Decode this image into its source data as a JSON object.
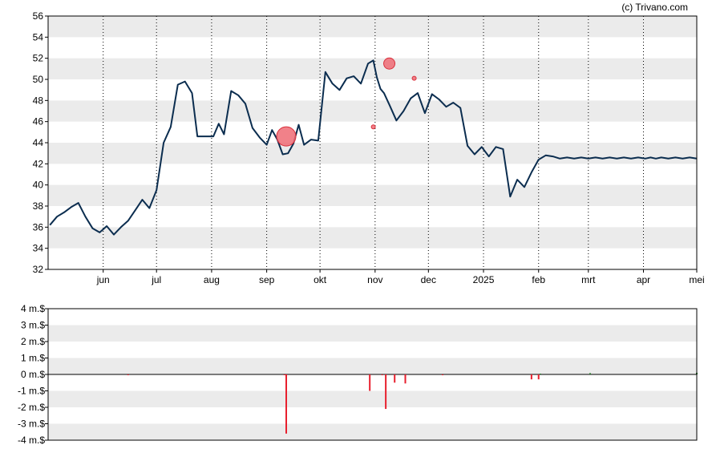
{
  "credit": "(c) Trivano.com",
  "colors": {
    "price_line": "#0b2d4f",
    "band": "#ebebeb",
    "bubble_fill": "#ef6b74",
    "bubble_stroke": "#d9303c",
    "bar_sell": "#e8202e",
    "bar_buy": "#2e7d32",
    "axis": "#000000",
    "vgrid": "#000000"
  },
  "chart_data": [
    {
      "type": "line",
      "panel": "price",
      "title": "",
      "xlabel": "",
      "ylabel": "",
      "x": [
        "2024-05-02",
        "2024-05-06",
        "2024-05-10",
        "2024-05-14",
        "2024-05-18",
        "2024-05-22",
        "2024-05-26",
        "2024-05-30",
        "2024-06-03",
        "2024-06-07",
        "2024-06-11",
        "2024-06-15",
        "2024-06-19",
        "2024-06-23",
        "2024-06-27",
        "2024-07-01",
        "2024-07-05",
        "2024-07-09",
        "2024-07-13",
        "2024-07-17",
        "2024-07-21",
        "2024-07-24",
        "2024-07-27",
        "2024-07-30",
        "2024-08-02",
        "2024-08-05",
        "2024-08-08",
        "2024-08-12",
        "2024-08-16",
        "2024-08-20",
        "2024-08-24",
        "2024-08-28",
        "2024-09-01",
        "2024-09-04",
        "2024-09-07",
        "2024-09-10",
        "2024-09-13",
        "2024-09-16",
        "2024-09-19",
        "2024-09-22",
        "2024-09-26",
        "2024-09-30",
        "2024-10-04",
        "2024-10-08",
        "2024-10-12",
        "2024-10-16",
        "2024-10-20",
        "2024-10-24",
        "2024-10-28",
        "2024-10-31",
        "2024-11-02",
        "2024-11-04",
        "2024-11-06",
        "2024-11-09",
        "2024-11-13",
        "2024-11-17",
        "2024-11-21",
        "2024-11-25",
        "2024-11-29",
        "2024-12-03",
        "2024-12-07",
        "2024-12-11",
        "2024-12-15",
        "2024-12-19",
        "2024-12-23",
        "2024-12-27",
        "2024-12-31",
        "2025-01-04",
        "2025-01-08",
        "2025-01-12",
        "2025-01-16",
        "2025-01-20",
        "2025-01-24",
        "2025-01-28",
        "2025-02-01",
        "2025-02-05",
        "2025-02-09",
        "2025-02-13",
        "2025-02-17",
        "2025-02-21",
        "2025-02-25",
        "2025-03-01",
        "2025-03-05",
        "2025-03-09",
        "2025-03-13",
        "2025-03-17",
        "2025-03-21",
        "2025-03-25",
        "2025-03-29",
        "2025-04-02",
        "2025-04-05",
        "2025-04-08",
        "2025-04-11",
        "2025-04-15",
        "2025-04-19",
        "2025-04-23",
        "2025-04-27",
        "2025-05-01"
      ],
      "values": [
        36.2,
        37.0,
        37.4,
        37.9,
        38.3,
        37.0,
        35.9,
        35.5,
        36.1,
        35.3,
        36.0,
        36.6,
        37.6,
        38.6,
        37.8,
        39.5,
        44.0,
        45.5,
        49.5,
        49.8,
        48.7,
        44.6,
        44.6,
        44.6,
        44.6,
        45.8,
        44.8,
        48.9,
        48.5,
        47.7,
        45.4,
        44.5,
        43.8,
        45.2,
        44.3,
        42.9,
        43.0,
        43.9,
        45.7,
        43.8,
        44.3,
        44.2,
        50.7,
        49.6,
        49.0,
        50.1,
        50.3,
        49.6,
        51.5,
        51.8,
        50.2,
        49.1,
        48.7,
        47.6,
        46.1,
        47.0,
        48.2,
        48.7,
        46.8,
        48.6,
        48.1,
        47.4,
        47.8,
        47.3,
        43.7,
        42.9,
        43.6,
        42.7,
        43.6,
        43.4,
        38.9,
        40.5,
        39.8,
        41.2,
        42.4,
        42.8,
        42.7,
        42.5,
        42.6,
        42.5,
        42.6,
        42.5,
        42.6,
        42.5,
        42.6,
        42.5,
        42.6,
        42.5,
        42.6,
        42.5,
        42.6,
        42.5,
        42.6,
        42.5,
        42.6,
        42.5,
        42.6,
        42.5
      ],
      "ylim": [
        32,
        56
      ],
      "yticks": [
        "32",
        "34",
        "36",
        "38",
        "40",
        "42",
        "44",
        "46",
        "48",
        "50",
        "52",
        "54",
        "56"
      ],
      "xtick_labels": [
        {
          "label": "jun",
          "date": "2024-06-01"
        },
        {
          "label": "jul",
          "date": "2024-07-01"
        },
        {
          "label": "aug",
          "date": "2024-08-01"
        },
        {
          "label": "sep",
          "date": "2024-09-01"
        },
        {
          "label": "okt",
          "date": "2024-10-01"
        },
        {
          "label": "nov",
          "date": "2024-11-01"
        },
        {
          "label": "dec",
          "date": "2024-12-01"
        },
        {
          "label": "2025",
          "date": "2025-01-01"
        },
        {
          "label": "feb",
          "date": "2025-02-01"
        },
        {
          "label": "mrt",
          "date": "2025-03-01"
        },
        {
          "label": "apr",
          "date": "2025-04-01"
        },
        {
          "label": "mei",
          "date": "2025-05-01"
        }
      ],
      "xlim": [
        "2024-05-01",
        "2025-05-01"
      ],
      "grid": "vertical dotted at month starts, horizontal alternating bands",
      "trade_markers": [
        {
          "date": "2024-09-12",
          "price": 44.6,
          "size": "large"
        },
        {
          "date": "2024-10-31",
          "price": 45.5,
          "size": "small"
        },
        {
          "date": "2024-11-09",
          "price": 51.5,
          "size": "medium"
        },
        {
          "date": "2024-11-23",
          "price": 50.1,
          "size": "small"
        }
      ]
    },
    {
      "type": "bar",
      "panel": "volume",
      "title": "",
      "xlabel": "",
      "ylabel": "",
      "x": [
        "2024-06-15",
        "2024-09-11",
        "2024-09-12",
        "2024-10-29",
        "2024-11-05",
        "2024-11-07",
        "2024-11-12",
        "2024-11-18",
        "2024-12-09",
        "2025-01-28",
        "2025-02-01",
        "2025-02-02",
        "2025-03-02",
        "2025-05-01"
      ],
      "values": [
        -0.05,
        -0.05,
        -3.6,
        -1.0,
        -0.05,
        -2.1,
        -0.5,
        -0.55,
        -0.05,
        -0.3,
        -0.3,
        0.05,
        0.08,
        0.1
      ],
      "ylim": [
        -4,
        4
      ],
      "yticks": [
        "-4 m.$",
        "-3 m.$",
        "-2 m.$",
        "-1 m.$",
        "0 m.$",
        "1 m.$",
        "2 m.$",
        "3 m.$",
        "4 m.$"
      ]
    }
  ]
}
